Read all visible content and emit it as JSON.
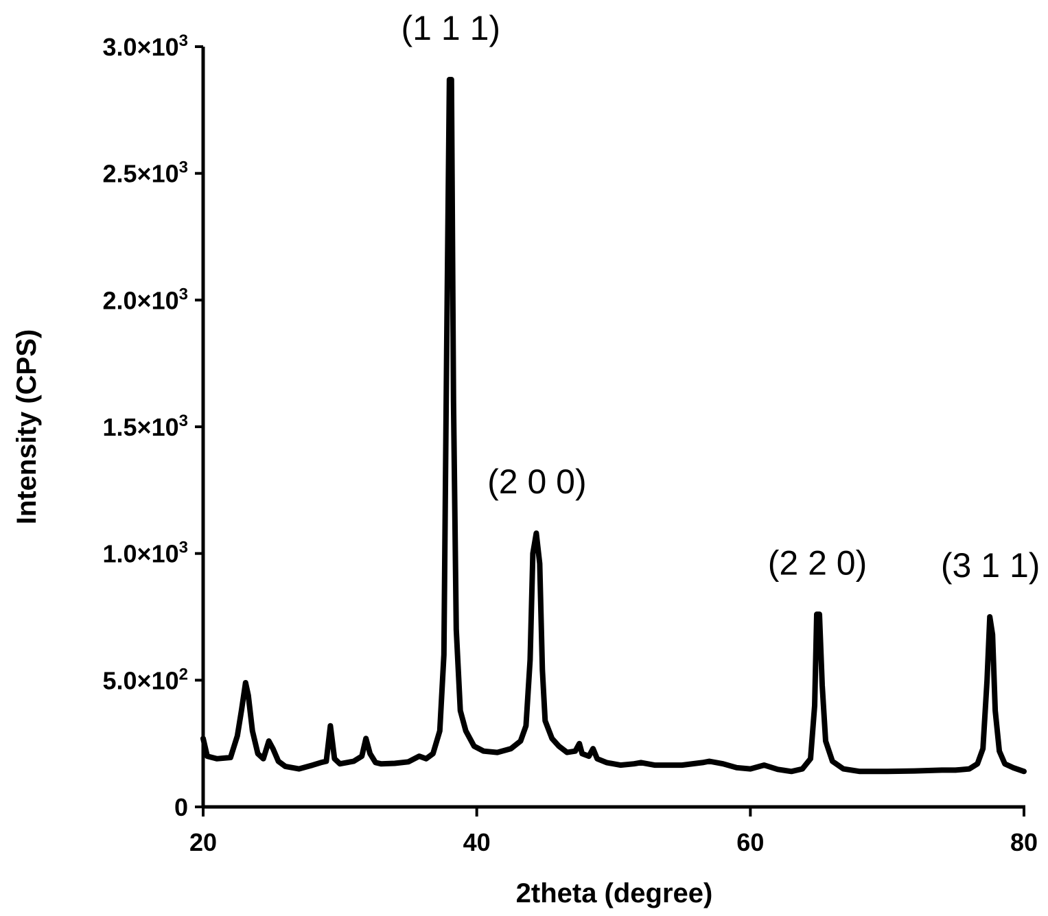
{
  "chart_data": {
    "type": "line",
    "title": "",
    "xlabel": "2theta (degree)",
    "ylabel": "Intensity (CPS)",
    "xlim": [
      20,
      80
    ],
    "ylim": [
      0,
      3000
    ],
    "x_ticks": [
      {
        "value": 20,
        "label": "20"
      },
      {
        "value": 40,
        "label": "40"
      },
      {
        "value": 60,
        "label": "60"
      },
      {
        "value": 80,
        "label": "80"
      }
    ],
    "y_ticks": [
      {
        "value": 0,
        "label": "0",
        "mantissa": "0",
        "exponent": ""
      },
      {
        "value": 500,
        "label": "5.0×10²",
        "mantissa": "5.0×10",
        "exponent": "2"
      },
      {
        "value": 1000,
        "label": "1.0×10³",
        "mantissa": "1.0×10",
        "exponent": "3"
      },
      {
        "value": 1500,
        "label": "1.5×10³",
        "mantissa": "1.5×10",
        "exponent": "3"
      },
      {
        "value": 2000,
        "label": "2.0×10³",
        "mantissa": "2.0×10",
        "exponent": "3"
      },
      {
        "value": 2500,
        "label": "2.5×10³",
        "mantissa": "2.5×10",
        "exponent": "3"
      },
      {
        "value": 3000,
        "label": "3.0×10³",
        "mantissa": "3.0×10",
        "exponent": "3"
      }
    ],
    "grid": false,
    "legend": "none",
    "line_color": "#000000",
    "series": [
      {
        "points": [
          [
            20.0,
            270
          ],
          [
            20.3,
            200
          ],
          [
            21.0,
            190
          ],
          [
            22.0,
            195
          ],
          [
            22.5,
            280
          ],
          [
            22.8,
            380
          ],
          [
            23.1,
            490
          ],
          [
            23.3,
            440
          ],
          [
            23.6,
            300
          ],
          [
            24.0,
            210
          ],
          [
            24.4,
            190
          ],
          [
            24.8,
            260
          ],
          [
            25.1,
            230
          ],
          [
            25.5,
            180
          ],
          [
            26.0,
            160
          ],
          [
            27.0,
            150
          ],
          [
            28.0,
            165
          ],
          [
            28.6,
            175
          ],
          [
            29.0,
            180
          ],
          [
            29.3,
            320
          ],
          [
            29.6,
            190
          ],
          [
            30.0,
            170
          ],
          [
            31.0,
            180
          ],
          [
            31.6,
            200
          ],
          [
            31.9,
            270
          ],
          [
            32.2,
            210
          ],
          [
            32.6,
            175
          ],
          [
            33.0,
            170
          ],
          [
            34.0,
            172
          ],
          [
            35.0,
            178
          ],
          [
            35.8,
            200
          ],
          [
            36.3,
            190
          ],
          [
            36.8,
            210
          ],
          [
            37.3,
            300
          ],
          [
            37.6,
            600
          ],
          [
            37.8,
            1800
          ],
          [
            38.0,
            2870
          ],
          [
            38.15,
            2870
          ],
          [
            38.3,
            1600
          ],
          [
            38.5,
            700
          ],
          [
            38.8,
            380
          ],
          [
            39.2,
            300
          ],
          [
            39.8,
            240
          ],
          [
            40.5,
            220
          ],
          [
            41.5,
            215
          ],
          [
            42.5,
            230
          ],
          [
            43.2,
            260
          ],
          [
            43.6,
            320
          ],
          [
            43.9,
            580
          ],
          [
            44.1,
            1000
          ],
          [
            44.35,
            1080
          ],
          [
            44.6,
            960
          ],
          [
            44.8,
            540
          ],
          [
            45.0,
            340
          ],
          [
            45.5,
            270
          ],
          [
            46.0,
            240
          ],
          [
            46.6,
            215
          ],
          [
            47.2,
            220
          ],
          [
            47.5,
            250
          ],
          [
            47.7,
            210
          ],
          [
            48.2,
            200
          ],
          [
            48.5,
            230
          ],
          [
            48.8,
            190
          ],
          [
            49.5,
            175
          ],
          [
            50.5,
            165
          ],
          [
            51.5,
            170
          ],
          [
            52.0,
            175
          ],
          [
            53.0,
            165
          ],
          [
            55.0,
            165
          ],
          [
            56.5,
            175
          ],
          [
            57.0,
            180
          ],
          [
            58.0,
            170
          ],
          [
            59.0,
            155
          ],
          [
            60.0,
            150
          ],
          [
            61.0,
            165
          ],
          [
            62.0,
            148
          ],
          [
            63.0,
            140
          ],
          [
            63.8,
            150
          ],
          [
            64.4,
            190
          ],
          [
            64.7,
            400
          ],
          [
            64.85,
            760
          ],
          [
            65.05,
            760
          ],
          [
            65.25,
            480
          ],
          [
            65.5,
            260
          ],
          [
            66.0,
            180
          ],
          [
            66.8,
            150
          ],
          [
            68.0,
            140
          ],
          [
            70.0,
            140
          ],
          [
            72.0,
            142
          ],
          [
            74.0,
            145
          ],
          [
            75.0,
            145
          ],
          [
            76.0,
            150
          ],
          [
            76.6,
            170
          ],
          [
            77.0,
            230
          ],
          [
            77.3,
            500
          ],
          [
            77.5,
            750
          ],
          [
            77.7,
            680
          ],
          [
            77.9,
            380
          ],
          [
            78.2,
            220
          ],
          [
            78.6,
            170
          ],
          [
            79.2,
            155
          ],
          [
            80.0,
            140
          ]
        ]
      }
    ],
    "annotations": [
      {
        "text": "(1 1 1)",
        "x": 38.1
      },
      {
        "text": "(2 0 0)",
        "x": 44.4
      },
      {
        "text": "(2 2 0)",
        "x": 64.9
      },
      {
        "text": "(3 1 1)",
        "x": 77.55
      }
    ]
  }
}
